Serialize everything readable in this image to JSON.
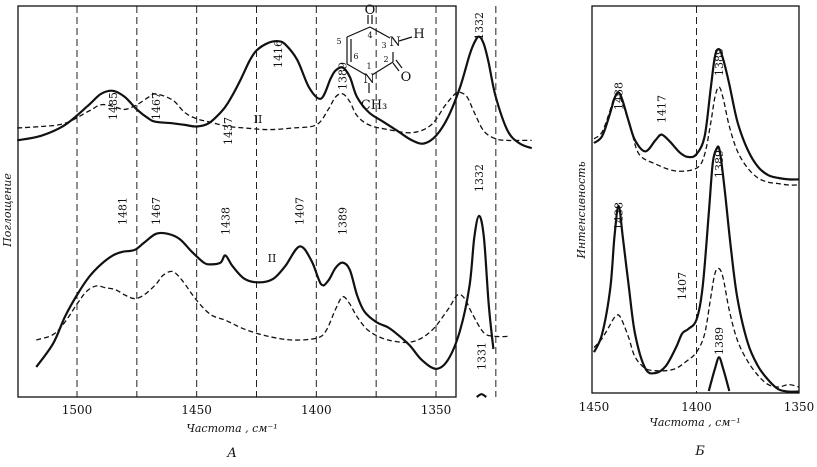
{
  "chart_data": [
    {
      "type": "line",
      "panel_label": "А",
      "xlabel": "Частота , см⁻¹",
      "ylabel": "Поглощение",
      "x_ticks": [
        "1500",
        "1450",
        "1400",
        "1350"
      ],
      "xlim": [
        1525,
        1310
      ],
      "grid": "dashed vertical lines at 1500, 1475, 1450, 1425, 1400, 1375, 1350, 1325",
      "band_label": "II",
      "structure": {
        "atoms": [
          "O",
          "N",
          "H",
          "O",
          "N",
          "CH₃"
        ],
        "ring_numbers": [
          "1",
          "2",
          "3",
          "4",
          "5",
          "6"
        ]
      },
      "series": [
        {
          "style": "solid",
          "x": [
            1525,
            1515,
            1505,
            1495,
            1490,
            1485,
            1480,
            1475,
            1470,
            1467,
            1460,
            1455,
            1450,
            1445,
            1440,
            1437,
            1432,
            1428,
            1425,
            1420,
            1416,
            1413,
            1408,
            1403,
            1398,
            1394,
            1392,
            1389,
            1386,
            1383,
            1378,
            1372,
            1366,
            1360,
            1355,
            1350,
            1345,
            1340,
            1336,
            1334,
            1332,
            1330,
            1328,
            1325,
            1320,
            1315,
            1310
          ],
          "y": [
            0.32,
            0.35,
            0.42,
            0.55,
            0.62,
            0.64,
            0.6,
            0.52,
            0.46,
            0.44,
            0.43,
            0.42,
            0.41,
            0.43,
            0.5,
            0.56,
            0.7,
            0.83,
            0.9,
            0.95,
            0.96,
            0.94,
            0.84,
            0.66,
            0.59,
            0.72,
            0.77,
            0.79,
            0.73,
            0.6,
            0.5,
            0.44,
            0.38,
            0.32,
            0.3,
            0.35,
            0.47,
            0.66,
            0.87,
            0.95,
            0.99,
            0.94,
            0.82,
            0.6,
            0.38,
            0.3,
            0.27
          ],
          "peak_labels": [
            {
              "x": 1485,
              "text": "1485"
            },
            {
              "x": 1437,
              "text": "1437"
            },
            {
              "x": 1416,
              "text": "1416"
            },
            {
              "x": 1389,
              "text": "1389"
            },
            {
              "x": 1332,
              "text": "1332"
            }
          ]
        },
        {
          "style": "dashed",
          "x": [
            1525,
            1515,
            1505,
            1495,
            1490,
            1485,
            1480,
            1475,
            1470,
            1467,
            1460,
            1455,
            1450,
            1445,
            1440,
            1437,
            1430,
            1420,
            1410,
            1400,
            1395,
            1392,
            1389,
            1386,
            1383,
            1378,
            1370,
            1360,
            1352,
            1346,
            1342,
            1340,
            1337,
            1334,
            1330,
            1325,
            1320,
            1315,
            1310
          ],
          "y": [
            0.4,
            0.41,
            0.43,
            0.51,
            0.55,
            0.54,
            0.52,
            0.55,
            0.6,
            0.62,
            0.58,
            0.5,
            0.46,
            0.44,
            0.42,
            0.41,
            0.4,
            0.39,
            0.4,
            0.42,
            0.52,
            0.6,
            0.62,
            0.57,
            0.48,
            0.42,
            0.39,
            0.37,
            0.42,
            0.55,
            0.62,
            0.63,
            0.6,
            0.5,
            0.38,
            0.33,
            0.32,
            0.32,
            0.32
          ],
          "peak_labels": [
            {
              "x": 1467,
              "text": "1467"
            }
          ]
        }
      ]
    },
    {
      "type": "line",
      "panel_label": "А",
      "xlabel": "Частота , см⁻¹",
      "ylabel": "Поглощение",
      "x_ticks": [
        "1500",
        "1450",
        "1400",
        "1350"
      ],
      "xlim": [
        1525,
        1310
      ],
      "band_label": "II",
      "series": [
        {
          "style": "solid",
          "x": [
            1517,
            1510,
            1505,
            1500,
            1495,
            1490,
            1485,
            1481,
            1476,
            1472,
            1467,
            1462,
            1457,
            1452,
            1447,
            1444,
            1440,
            1438,
            1435,
            1430,
            1424,
            1418,
            1413,
            1407,
            1402,
            1398,
            1395,
            1392,
            1389,
            1386,
            1383,
            1380,
            1375,
            1370,
            1366,
            1361,
            1356,
            1350,
            1345,
            1340,
            1336,
            1334,
            1332,
            1330,
            1328,
            1326
          ],
          "y": [
            0.1,
            0.23,
            0.38,
            0.5,
            0.6,
            0.67,
            0.72,
            0.74,
            0.75,
            0.79,
            0.84,
            0.84,
            0.81,
            0.74,
            0.68,
            0.67,
            0.68,
            0.72,
            0.66,
            0.59,
            0.57,
            0.59,
            0.66,
            0.77,
            0.69,
            0.56,
            0.58,
            0.65,
            0.68,
            0.64,
            0.5,
            0.41,
            0.35,
            0.32,
            0.28,
            0.22,
            0.14,
            0.09,
            0.14,
            0.3,
            0.55,
            0.82,
            0.94,
            0.82,
            0.45,
            0.2
          ],
          "peak_labels": [
            {
              "x": 1481,
              "text": "1481"
            },
            {
              "x": 1438,
              "text": "1438"
            },
            {
              "x": 1407,
              "text": "1407"
            },
            {
              "x": 1389,
              "text": "1389"
            },
            {
              "x": 1332,
              "text": "1332"
            }
          ]
        },
        {
          "style": "dashed",
          "x": [
            1517,
            1510,
            1505,
            1500,
            1496,
            1492,
            1488,
            1484,
            1480,
            1476,
            1472,
            1467,
            1464,
            1460,
            1456,
            1450,
            1444,
            1438,
            1430,
            1420,
            1410,
            1400,
            1396,
            1392,
            1389,
            1386,
            1383,
            1378,
            1370,
            1360,
            1352,
            1345,
            1341,
            1338,
            1335,
            1330,
            1325,
            1320
          ],
          "y": [
            0.25,
            0.28,
            0.35,
            0.45,
            0.52,
            0.55,
            0.54,
            0.53,
            0.5,
            0.48,
            0.5,
            0.56,
            0.61,
            0.63,
            0.58,
            0.47,
            0.39,
            0.36,
            0.31,
            0.27,
            0.25,
            0.26,
            0.3,
            0.42,
            0.49,
            0.45,
            0.38,
            0.3,
            0.25,
            0.24,
            0.3,
            0.42,
            0.5,
            0.48,
            0.4,
            0.29,
            0.27,
            0.27
          ],
          "peak_labels": [
            {
              "x": 1467,
              "text": "1467"
            }
          ]
        }
      ]
    },
    {
      "type": "line",
      "panel_label": "А",
      "x_ticks": [
        "1500",
        "1450",
        "1400",
        "1350"
      ],
      "xlim": [
        1525,
        1310
      ],
      "series": [
        {
          "style": "solid",
          "x": [
            1333,
            1331,
            1329
          ],
          "y": [
            0.0,
            0.04,
            0.0
          ],
          "peak_labels": [
            {
              "x": 1331,
              "text": "1331"
            }
          ]
        }
      ]
    },
    {
      "type": "line",
      "panel_label": "Б",
      "xlabel": "Частота , см⁻¹",
      "ylabel": "Интенсивность",
      "x_ticks": [
        "1450",
        "1400",
        "1350"
      ],
      "xlim": [
        1450,
        1350
      ],
      "grid": "dashed vertical line at 1400",
      "series": [
        {
          "style": "solid",
          "x": [
            1450,
            1446,
            1442,
            1440,
            1438,
            1436,
            1433,
            1430,
            1425,
            1420,
            1417,
            1413,
            1408,
            1404,
            1400,
            1396,
            1393,
            1391,
            1389,
            1387,
            1384,
            1380,
            1375,
            1370,
            1365,
            1360,
            1355,
            1350
          ],
          "y": [
            0.3,
            0.35,
            0.52,
            0.62,
            0.66,
            0.6,
            0.45,
            0.32,
            0.24,
            0.32,
            0.36,
            0.31,
            0.23,
            0.2,
            0.22,
            0.35,
            0.7,
            0.92,
            0.97,
            0.9,
            0.72,
            0.45,
            0.25,
            0.13,
            0.07,
            0.05,
            0.04,
            0.04
          ],
          "peak_labels": [
            {
              "x": 1438,
              "text": "1438"
            },
            {
              "x": 1417,
              "text": "1417"
            },
            {
              "x": 1389,
              "text": "1389"
            }
          ]
        },
        {
          "style": "dashed",
          "x": [
            1450,
            1446,
            1442,
            1440,
            1438,
            1436,
            1432,
            1428,
            1420,
            1410,
            1400,
            1396,
            1393,
            1391,
            1389,
            1387,
            1384,
            1380,
            1375,
            1370,
            1365,
            1360,
            1355,
            1350
          ],
          "y": [
            0.33,
            0.38,
            0.54,
            0.63,
            0.64,
            0.58,
            0.4,
            0.22,
            0.15,
            0.1,
            0.12,
            0.22,
            0.45,
            0.63,
            0.7,
            0.62,
            0.42,
            0.24,
            0.12,
            0.05,
            0.02,
            0.01,
            0.0,
            0.0
          ]
        }
      ]
    },
    {
      "type": "line",
      "panel_label": "Б",
      "x_ticks": [
        "1450",
        "1400",
        "1350"
      ],
      "xlim": [
        1450,
        1350
      ],
      "series": [
        {
          "style": "solid",
          "x": [
            1450,
            1446,
            1442,
            1440,
            1438,
            1436,
            1433,
            1430,
            1425,
            1420,
            1415,
            1410,
            1407,
            1404,
            1400,
            1397,
            1394,
            1392,
            1390,
            1389,
            1388,
            1386,
            1383,
            1380,
            1375,
            1370,
            1365,
            1360,
            1355,
            1350
          ],
          "y": [
            0.12,
            0.2,
            0.4,
            0.62,
            0.75,
            0.62,
            0.4,
            0.2,
            0.05,
            0.03,
            0.06,
            0.14,
            0.2,
            0.22,
            0.26,
            0.4,
            0.72,
            0.94,
            1.0,
            1.0,
            0.95,
            0.8,
            0.55,
            0.35,
            0.16,
            0.06,
            0.0,
            -0.04,
            -0.05,
            -0.05
          ],
          "peak_labels": [
            {
              "x": 1438,
              "text": "1438"
            },
            {
              "x": 1407,
              "text": "1407"
            },
            {
              "x": 1389,
              "text": "1389"
            }
          ]
        },
        {
          "style": "dashed",
          "x": [
            1450,
            1446,
            1442,
            1440,
            1438,
            1436,
            1433,
            1430,
            1425,
            1420,
            1415,
            1410,
            1405,
            1400,
            1396,
            1393,
            1391,
            1389,
            1387,
            1384,
            1380,
            1375,
            1370,
            1365,
            1360,
            1355,
            1350
          ],
          "y": [
            0.14,
            0.18,
            0.24,
            0.27,
            0.28,
            0.25,
            0.18,
            0.1,
            0.05,
            0.04,
            0.04,
            0.05,
            0.08,
            0.12,
            0.2,
            0.36,
            0.46,
            0.48,
            0.44,
            0.3,
            0.17,
            0.08,
            0.02,
            -0.02,
            -0.03,
            -0.02,
            -0.03
          ]
        }
      ]
    },
    {
      "type": "line",
      "panel_label": "Б",
      "x_ticks": [
        "1450",
        "1400",
        "1350"
      ],
      "xlim": [
        1450,
        1350
      ],
      "series": [
        {
          "style": "solid",
          "x": [
            1394,
            1391,
            1389,
            1387,
            1384
          ],
          "y": [
            0.0,
            0.08,
            0.12,
            0.08,
            0.0
          ],
          "peak_labels": [
            {
              "x": 1389,
              "text": "1389"
            }
          ]
        }
      ]
    }
  ]
}
